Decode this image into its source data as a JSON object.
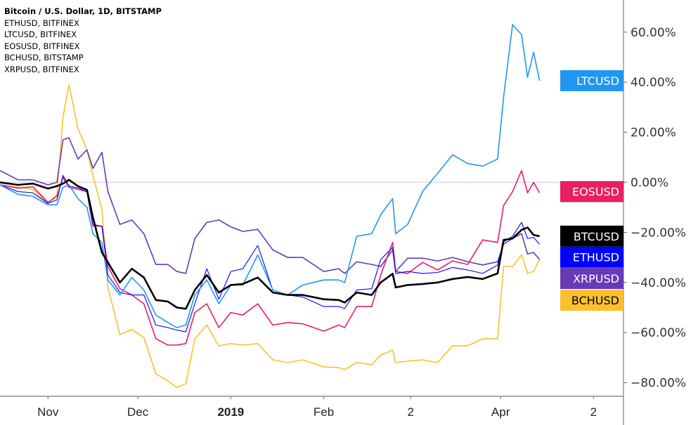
{
  "legend": {
    "title": "Bitcoin / U.S. Dollar, 1D, BITSTAMP",
    "items": [
      "ETHUSD, BITFINEX",
      "LTCUSD, BITFINEX",
      "EOSUSD, BITFINEX",
      "BCHUSD, BITSTAMP",
      "XRPUSD, BITFINEX"
    ]
  },
  "chart_data": {
    "type": "line",
    "title": "Bitcoin / U.S. Dollar, 1D, BITSTAMP",
    "xlabel": "",
    "ylabel": "",
    "ylim": [
      -85,
      72
    ],
    "xlim": [
      "2018-10-16",
      "2019-05-12"
    ],
    "y_scale": "linear",
    "y_unit": "%",
    "grid": false,
    "zero_line": true,
    "yticks": [
      60,
      40,
      20,
      0,
      -20,
      -40,
      -60,
      -80
    ],
    "ytick_labels": [
      "60.00%",
      "40.00%",
      "20.00%",
      "0.00%",
      "−20.00%",
      "−40.00%",
      "−60.00%",
      "−80.00%"
    ],
    "xticks": [
      {
        "date": "2018-11-01",
        "label": "Nov",
        "bold": false
      },
      {
        "date": "2018-12-01",
        "label": "Dec",
        "bold": false
      },
      {
        "date": "2019-01-01",
        "label": "2019",
        "bold": true
      },
      {
        "date": "2019-02-01",
        "label": "Feb",
        "bold": false
      },
      {
        "date": "2019-03-02",
        "label": "2",
        "bold": false
      },
      {
        "date": "2019-04-01",
        "label": "Apr",
        "bold": false
      },
      {
        "date": "2019-05-02",
        "label": "2",
        "bold": false
      }
    ],
    "x": [
      "2018-10-16",
      "2018-10-22",
      "2018-10-27",
      "2018-11-01",
      "2018-11-04",
      "2018-11-06",
      "2018-11-08",
      "2018-11-11",
      "2018-11-14",
      "2018-11-16",
      "2018-11-19",
      "2018-11-21",
      "2018-11-25",
      "2018-11-29",
      "2018-12-03",
      "2018-12-07",
      "2018-12-11",
      "2018-12-14",
      "2018-12-17",
      "2018-12-20",
      "2018-12-24",
      "2018-12-28",
      "2019-01-01",
      "2019-01-05",
      "2019-01-10",
      "2019-01-15",
      "2019-01-20",
      "2019-01-25",
      "2019-02-01",
      "2019-02-06",
      "2019-02-08",
      "2019-02-12",
      "2019-02-17",
      "2019-02-20",
      "2019-02-24",
      "2019-02-25",
      "2019-03-01",
      "2019-03-06",
      "2019-03-11",
      "2019-03-16",
      "2019-03-21",
      "2019-03-26",
      "2019-03-31",
      "2019-04-02",
      "2019-04-05",
      "2019-04-08",
      "2019-04-10",
      "2019-04-12",
      "2019-04-14"
    ],
    "series": [
      {
        "name": "BCHUSD",
        "color": "#fbc02d",
        "width": 1.6,
        "values": [
          -1,
          -2,
          -2.8,
          -8.4,
          -4.8,
          26,
          39,
          21.5,
          13,
          2.8,
          -11,
          -42,
          -60.8,
          -58.8,
          -62,
          -76.5,
          -79.3,
          -82,
          -80.4,
          -62.5,
          -57,
          -65.3,
          -64.4,
          -65,
          -64.4,
          -70.9,
          -72,
          -70.9,
          -73.7,
          -74,
          -74.8,
          -72,
          -72.8,
          -69,
          -67,
          -72,
          -71.4,
          -70.9,
          -72,
          -65.3,
          -65.3,
          -62.5,
          -62.5,
          -33.6,
          -33.6,
          -28.9,
          -36.4,
          -35.6,
          -30.8
        ]
      },
      {
        "name": "XRPUSD",
        "color": "#673ab7",
        "width": 1.6,
        "values": [
          4.7,
          1,
          1,
          -1,
          0,
          17,
          17.8,
          9.3,
          13,
          5.6,
          12,
          -3.7,
          -16.8,
          -15,
          -20.5,
          -32.8,
          -32.8,
          -35.6,
          -36.4,
          -22.4,
          -16,
          -15,
          -17.8,
          -19.6,
          -18.8,
          -27,
          -30,
          -30,
          -35.6,
          -34.5,
          -36.4,
          -31.7,
          -32.8,
          -33.6,
          -27,
          -35.6,
          -30.3,
          -30.3,
          -31.4,
          -30,
          -31.7,
          -33,
          -31.7,
          -24.7,
          -22.4,
          -20.5,
          -28.6,
          -28,
          -30.8
        ]
      },
      {
        "name": "EOSUSD",
        "color": "#e91e63",
        "width": 1.6,
        "values": [
          -1,
          -2.3,
          -1.8,
          -8,
          -5.6,
          2,
          -2,
          -2.8,
          -3.7,
          -17.5,
          -17.5,
          -33.6,
          -42.5,
          -45,
          -48.5,
          -62.5,
          -65,
          -65,
          -64.4,
          -52,
          -48.5,
          -58,
          -52,
          -53,
          -48.5,
          -57,
          -56,
          -56.5,
          -59.4,
          -57,
          -58,
          -49.6,
          -49.6,
          -37,
          -24,
          -35.6,
          -36.4,
          -32,
          -35,
          -31.4,
          -32.8,
          -23,
          -24,
          -9.3,
          -3.7,
          4.7,
          -4.2,
          0,
          -4.2
        ]
      },
      {
        "name": "ETHUSD",
        "color": "#0000ff",
        "width": 1.1,
        "values": [
          -1,
          -3.7,
          -4.2,
          -8.4,
          -7,
          2.8,
          -1.5,
          -2.2,
          -3.7,
          -16.8,
          -17.5,
          -37,
          -44,
          -45,
          -45,
          -57,
          -58,
          -59,
          -59.7,
          -48.5,
          -34.5,
          -46.7,
          -35.6,
          -34.5,
          -25.2,
          -43,
          -45,
          -45.8,
          -49.6,
          -49.6,
          -50.4,
          -43,
          -42.5,
          -30.8,
          -26,
          -36.4,
          -35.6,
          -36.4,
          -36,
          -34,
          -35,
          -36.4,
          -33,
          -23.8,
          -21.5,
          -16,
          -22.4,
          -22,
          -24.7
        ]
      },
      {
        "name": "LTCUSD",
        "color": "#2196f3",
        "width": 1.6,
        "values": [
          -1,
          -4.8,
          -5.6,
          -9,
          -9,
          -2,
          -1,
          -6.5,
          -10,
          -20.5,
          -24,
          -39,
          -45,
          -38,
          -43,
          -53,
          -56,
          -58,
          -57,
          -45,
          -39,
          -48.5,
          -41,
          -41,
          -29,
          -43,
          -45,
          -41,
          -39,
          -39,
          -40,
          -21.5,
          -20.5,
          -13,
          -6.5,
          -20.5,
          -16.8,
          -3.6,
          3.6,
          11,
          7.5,
          6.5,
          9.3,
          34,
          63,
          59,
          42,
          52,
          40.6
        ]
      },
      {
        "name": "BTCUSD",
        "color": "#000000",
        "width": 2.6,
        "values": [
          0,
          -1,
          -0.5,
          -2.5,
          -1.5,
          -0.5,
          1,
          -1.5,
          -3,
          -14,
          -28,
          -32,
          -40,
          -34.5,
          -38,
          -47,
          -47.6,
          -50,
          -50.5,
          -43,
          -37,
          -44,
          -41,
          -40.6,
          -38,
          -44,
          -45,
          -45,
          -46.7,
          -47,
          -48,
          -44,
          -45,
          -40,
          -36.5,
          -42,
          -41,
          -40.6,
          -40,
          -38.6,
          -37.8,
          -38.6,
          -36.4,
          -23,
          -22.4,
          -19,
          -18,
          -21,
          -21.5
        ]
      }
    ],
    "price_tags": [
      {
        "label": "LTCUSD",
        "value": 40.6,
        "bg": "#2196f3",
        "fg": "#ffffff"
      },
      {
        "label": "EOSUSD",
        "value": -3.7,
        "bg": "#e91e63",
        "fg": "#ffffff"
      },
      {
        "label": "BTCUSD",
        "value": -21.5,
        "bg": "#000000",
        "fg": "#ffffff"
      },
      {
        "label": "ETHUSD",
        "value": -29.9,
        "bg": "#0000ff",
        "fg": "#ffffff"
      },
      {
        "label": "XRPUSD",
        "value": -38.4,
        "bg": "#673ab7",
        "fg": "#ffffff"
      },
      {
        "label": "BCHUSD",
        "value": -47.1,
        "bg": "#fbc02d",
        "fg": "#000000"
      }
    ]
  }
}
